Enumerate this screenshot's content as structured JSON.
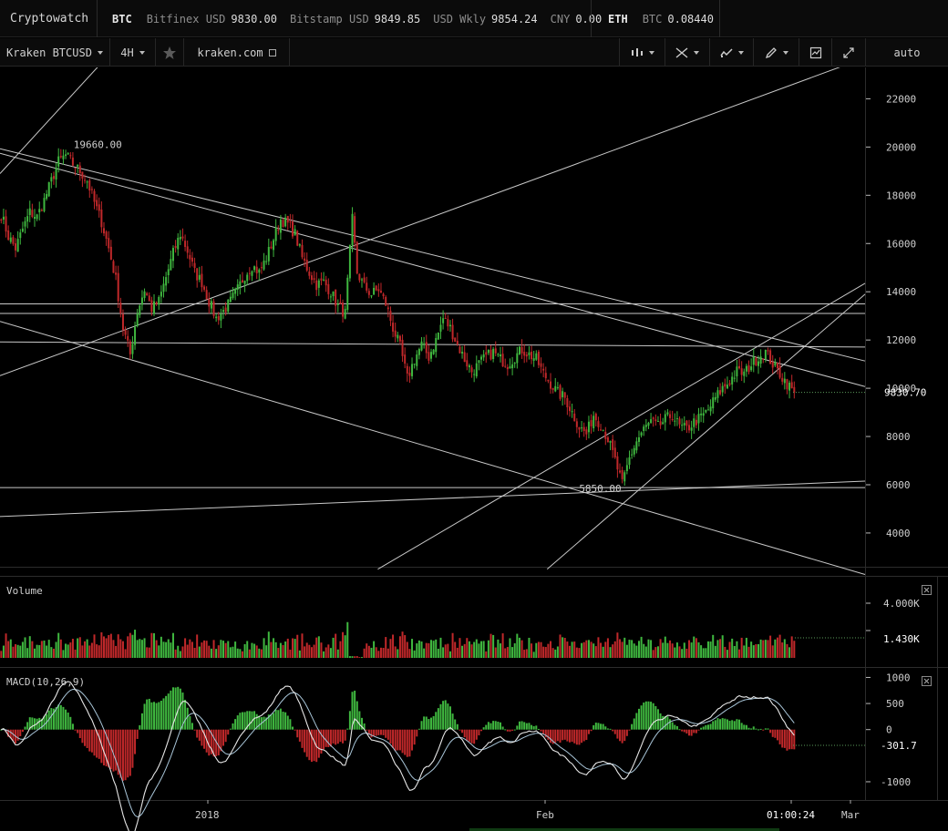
{
  "topbar": {
    "brand": "Cryptowatch",
    "btc": {
      "symbol": "BTC",
      "quotes": [
        {
          "label": "Bitfinex USD",
          "value": "9830.00"
        },
        {
          "label": "Bitstamp USD",
          "value": "9849.85"
        },
        {
          "label": "USD Wkly",
          "value": "9854.24"
        },
        {
          "label": "CNY",
          "value": "0.00"
        }
      ]
    },
    "eth": {
      "symbol": "ETH",
      "quotes": [
        {
          "label": "BTC",
          "value": "0.08440"
        }
      ]
    }
  },
  "toolbar": {
    "market": "Kraken BTCUSD",
    "interval": "4H",
    "favorite_icon": "star-icon",
    "exchange_link": "kraken.com",
    "tools": [
      "candle-type-icon",
      "crosshair-icon",
      "indicators-icon",
      "draw-pencil-icon",
      "chart-settings-icon",
      "fullscreen-icon"
    ],
    "scale_mode": "auto"
  },
  "chart_data": [
    {
      "type": "candlestick",
      "pane": "price",
      "title": "",
      "ylim": [
        2600,
        23300
      ],
      "y_ticks": [
        4000,
        6000,
        8000,
        10000,
        12000,
        14000,
        16000,
        18000,
        20000,
        22000
      ],
      "last_price_label": "9830.70",
      "high_annotation": {
        "label": "19660.00",
        "value": 19660
      },
      "low_annotation": {
        "label": "5850.00",
        "value": 5850
      },
      "x_labels": [
        "2018",
        "Feb",
        "Mar"
      ],
      "countdown": "01:00:24",
      "close_path": [
        [
          0,
          17200
        ],
        [
          3,
          16300
        ],
        [
          6,
          15800
        ],
        [
          9,
          16600
        ],
        [
          12,
          17300
        ],
        [
          15,
          17100
        ],
        [
          18,
          17800
        ],
        [
          21,
          18600
        ],
        [
          24,
          19400
        ],
        [
          27,
          19660
        ],
        [
          30,
          19300
        ],
        [
          33,
          19000
        ],
        [
          36,
          18600
        ],
        [
          39,
          17700
        ],
        [
          42,
          16900
        ],
        [
          45,
          15800
        ],
        [
          48,
          14500
        ],
        [
          51,
          12500
        ],
        [
          54,
          11400
        ],
        [
          57,
          13200
        ],
        [
          60,
          14100
        ],
        [
          63,
          13300
        ],
        [
          66,
          13600
        ],
        [
          69,
          14600
        ],
        [
          72,
          15600
        ],
        [
          75,
          16400
        ],
        [
          78,
          15700
        ],
        [
          81,
          14800
        ],
        [
          84,
          14400
        ],
        [
          87,
          13600
        ],
        [
          90,
          12900
        ],
        [
          93,
          13200
        ],
        [
          96,
          13600
        ],
        [
          99,
          14100
        ],
        [
          102,
          14700
        ],
        [
          105,
          15100
        ],
        [
          108,
          14800
        ],
        [
          111,
          15400
        ],
        [
          114,
          16200
        ],
        [
          117,
          17000
        ],
        [
          120,
          16800
        ],
        [
          123,
          16400
        ],
        [
          126,
          15400
        ],
        [
          129,
          14800
        ],
        [
          132,
          14300
        ],
        [
          135,
          14400
        ],
        [
          138,
          14000
        ],
        [
          141,
          13400
        ],
        [
          144,
          13100
        ],
        [
          147,
          17000
        ],
        [
          149,
          14800
        ],
        [
          152,
          14200
        ],
        [
          155,
          13900
        ],
        [
          158,
          14100
        ],
        [
          161,
          13500
        ],
        [
          164,
          12500
        ],
        [
          167,
          11700
        ],
        [
          170,
          10400
        ],
        [
          173,
          11200
        ],
        [
          176,
          11800
        ],
        [
          179,
          11300
        ],
        [
          182,
          12000
        ],
        [
          185,
          12900
        ],
        [
          188,
          12500
        ],
        [
          191,
          11800
        ],
        [
          194,
          11200
        ],
        [
          197,
          10700
        ],
        [
          200,
          11000
        ],
        [
          203,
          11300
        ],
        [
          206,
          11500
        ],
        [
          209,
          11200
        ],
        [
          212,
          11000
        ],
        [
          215,
          11300
        ],
        [
          218,
          11600
        ],
        [
          221,
          11400
        ],
        [
          224,
          11200
        ],
        [
          227,
          10600
        ],
        [
          230,
          10200
        ],
        [
          233,
          9800
        ],
        [
          236,
          9600
        ],
        [
          239,
          9000
        ],
        [
          242,
          8400
        ],
        [
          245,
          8100
        ],
        [
          248,
          8900
        ],
        [
          251,
          8500
        ],
        [
          254,
          7900
        ],
        [
          257,
          7000
        ],
        [
          260,
          6000
        ],
        [
          263,
          7100
        ],
        [
          266,
          7800
        ],
        [
          269,
          8300
        ],
        [
          272,
          8600
        ],
        [
          275,
          8400
        ],
        [
          278,
          8700
        ],
        [
          281,
          8900
        ],
        [
          284,
          8400
        ],
        [
          287,
          8300
        ],
        [
          290,
          8600
        ],
        [
          293,
          8800
        ],
        [
          296,
          9100
        ],
        [
          299,
          9600
        ],
        [
          302,
          10000
        ],
        [
          305,
          10300
        ],
        [
          308,
          10700
        ],
        [
          311,
          10600
        ],
        [
          314,
          11000
        ],
        [
          317,
          11300
        ],
        [
          320,
          11500
        ],
        [
          323,
          11000
        ],
        [
          326,
          10600
        ],
        [
          329,
          10200
        ],
        [
          332,
          9830
        ]
      ],
      "horizontal_lines": [
        13500,
        13100,
        5880
      ],
      "trend_lines": [
        [
          [
            0,
            19930
          ],
          [
            332,
            11130
          ]
        ],
        [
          [
            0,
            19740
          ],
          [
            332,
            10070
          ]
        ],
        [
          [
            0,
            11920
          ],
          [
            332,
            11710
          ]
        ],
        [
          [
            0,
            12770
          ],
          [
            332,
            2280
          ]
        ],
        [
          [
            0,
            4680
          ],
          [
            332,
            6150
          ]
        ],
        [
          [
            0,
            10520
          ],
          [
            325,
            23420
          ]
        ],
        [
          [
            0,
            18900
          ],
          [
            45,
            24200
          ]
        ],
        [
          [
            145,
            2500
          ],
          [
            332,
            14350
          ]
        ],
        [
          [
            210,
            2500
          ],
          [
            332,
            13900
          ]
        ]
      ]
    },
    {
      "type": "bar",
      "pane": "volume",
      "title": "Volume",
      "y_ticks": [
        "4.000K"
      ],
      "last_value_label": "1.430K"
    },
    {
      "type": "line",
      "pane": "macd",
      "title": "MACD(10,26,9)",
      "ylim": [
        -1350,
        1200
      ],
      "y_ticks": [
        1000,
        500,
        0,
        -1000
      ],
      "last_value_label": "-301.7"
    }
  ],
  "colors": {
    "up": "#3fb73f",
    "down": "#c0282a",
    "drawn_line": "#c8c8c8",
    "macd_line": "#e6e6e6",
    "signal_line": "#a9c6d9"
  }
}
